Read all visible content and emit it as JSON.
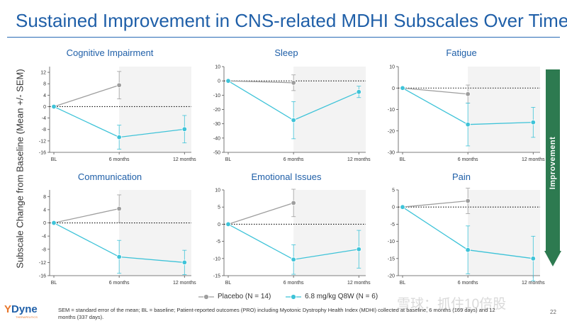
{
  "slide": {
    "title": "Sustained Improvement in CNS-related MDHI Subscales Over Time",
    "ylabel": "Subscale Change from Baseline (Mean +/- SEM)",
    "improvement_label": "Improvement",
    "page_number": "22",
    "footnote": "SEM = standard error of the mean; BL = baseline; Patient-reported outcomes (PRO) including Myotonic Dystrophy Health Index (MDHI) collected at baseline, 6 months (169 days) and 12 months (337 days).",
    "logo": {
      "text": "Dyne",
      "mark": "Y",
      "tagline": "THERAPEUTICS"
    },
    "watermark": "雪球：抓住10倍股",
    "legend": [
      {
        "label": "Placebo (N = 14)",
        "color": "#9e9e9e"
      },
      {
        "label": "6.8 mg/kg Q8W (N = 6)",
        "color": "#3ec3d8"
      }
    ]
  },
  "colors": {
    "placebo": "#9e9e9e",
    "treated": "#3ec3d8",
    "shade": "#f3f3f3",
    "title": "#1f5fa8",
    "arrow": "#2d7a50"
  },
  "chart_data": [
    {
      "type": "line",
      "title": "Cognitive Impairment",
      "categories": [
        "BL",
        "6 months",
        "12 months"
      ],
      "ylim": [
        -16,
        14
      ],
      "yticks": [
        -16,
        -12,
        -8,
        -4,
        0,
        4,
        8,
        12
      ],
      "series": [
        {
          "name": "Placebo (N = 14)",
          "values": [
            0,
            7.5,
            null
          ],
          "err": [
            0,
            4.8,
            null
          ]
        },
        {
          "name": "6.8 mg/kg Q8W (N = 6)",
          "values": [
            0,
            -10.7,
            -7.9
          ],
          "err": [
            0,
            4.2,
            4.8
          ]
        }
      ]
    },
    {
      "type": "line",
      "title": "Sleep",
      "categories": [
        "BL",
        "6 months",
        "12 months"
      ],
      "ylim": [
        -50,
        10
      ],
      "yticks": [
        -50,
        -40,
        -30,
        -20,
        -10,
        0,
        10
      ],
      "series": [
        {
          "name": "Placebo (N = 14)",
          "values": [
            0,
            -1.3,
            null
          ],
          "err": [
            0,
            5.5,
            null
          ]
        },
        {
          "name": "6.8 mg/kg Q8W (N = 6)",
          "values": [
            0,
            -27.5,
            -7.7
          ],
          "err": [
            0,
            13,
            4
          ]
        }
      ]
    },
    {
      "type": "line",
      "title": "Fatigue",
      "categories": [
        "BL",
        "6 months",
        "12 months"
      ],
      "ylim": [
        -30,
        10
      ],
      "yticks": [
        -30,
        -20,
        -10,
        0,
        10
      ],
      "series": [
        {
          "name": "Placebo (N = 14)",
          "values": [
            0,
            -2.8,
            null
          ],
          "err": [
            0,
            4.2,
            null
          ]
        },
        {
          "name": "6.8 mg/kg Q8W (N = 6)",
          "values": [
            0,
            -17,
            -16
          ],
          "err": [
            0,
            10,
            7
          ]
        }
      ]
    },
    {
      "type": "line",
      "title": "Communication",
      "categories": [
        "BL",
        "6 months",
        "12 months"
      ],
      "ylim": [
        -16,
        10
      ],
      "yticks": [
        -16,
        -12,
        -8,
        -4,
        0,
        4,
        8
      ],
      "series": [
        {
          "name": "Placebo (N = 14)",
          "values": [
            0,
            4.3,
            null
          ],
          "err": [
            0,
            4.2,
            null
          ]
        },
        {
          "name": "6.8 mg/kg Q8W (N = 6)",
          "values": [
            0,
            -10.3,
            -12
          ],
          "err": [
            0,
            5,
            3.7
          ]
        }
      ]
    },
    {
      "type": "line",
      "title": "Emotional Issues",
      "categories": [
        "BL",
        "6 months",
        "12 months"
      ],
      "ylim": [
        -15,
        10
      ],
      "yticks": [
        -15,
        -10,
        -5,
        0,
        5,
        10
      ],
      "series": [
        {
          "name": "Placebo (N = 14)",
          "values": [
            0,
            6.2,
            null
          ],
          "err": [
            0,
            4,
            null
          ]
        },
        {
          "name": "6.8 mg/kg Q8W (N = 6)",
          "values": [
            0,
            -10.3,
            -7.3
          ],
          "err": [
            0,
            4.3,
            5.5
          ]
        }
      ]
    },
    {
      "type": "line",
      "title": "Pain",
      "categories": [
        "BL",
        "6 months",
        "12 months"
      ],
      "ylim": [
        -20,
        5
      ],
      "yticks": [
        -20,
        -15,
        -10,
        -5,
        0,
        5
      ],
      "series": [
        {
          "name": "Placebo (N = 14)",
          "values": [
            0,
            1.8,
            null
          ],
          "err": [
            0,
            3.7,
            null
          ]
        },
        {
          "name": "6.8 mg/kg Q8W (N = 6)",
          "values": [
            0,
            -12.5,
            -15
          ],
          "err": [
            0,
            7,
            6.5
          ]
        }
      ]
    }
  ]
}
